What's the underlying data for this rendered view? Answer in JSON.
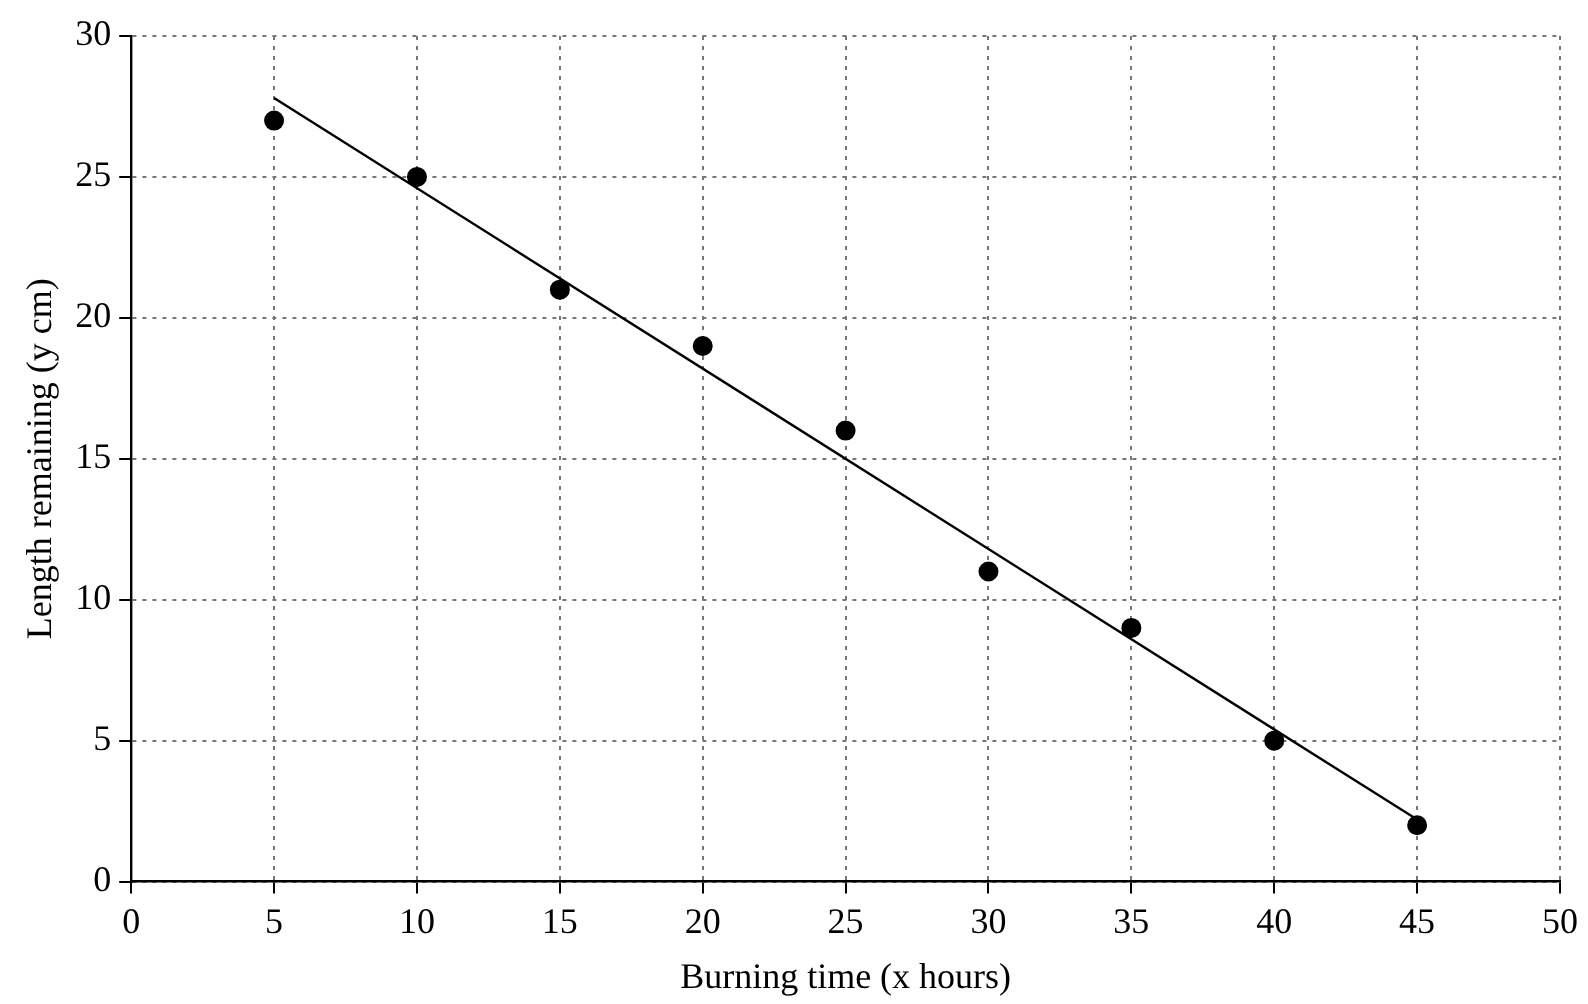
{
  "chart_data": {
    "type": "scatter",
    "xlabel": "Burning time (x hours)",
    "ylabel": "Length remaining (y cm)",
    "xlim": [
      0,
      50
    ],
    "xticks": [
      0,
      5,
      10,
      15,
      20,
      25,
      30,
      35,
      40,
      45,
      50
    ],
    "ylim": [
      0,
      30
    ],
    "yticks": [
      0,
      5,
      10,
      15,
      20,
      25,
      30
    ],
    "grid": true,
    "marker": "circle",
    "legend": false,
    "series": [
      {
        "color": "#000000",
        "x": [
          5,
          10,
          15,
          20,
          25,
          30,
          35,
          40,
          45
        ],
        "values": [
          27,
          25,
          21,
          19,
          16,
          11,
          9,
          5,
          2
        ]
      },
      {
        "type": "line",
        "marker": "none",
        "color": "#000000",
        "x": [
          5,
          45
        ],
        "values": [
          27.8,
          2.2
        ]
      }
    ]
  }
}
